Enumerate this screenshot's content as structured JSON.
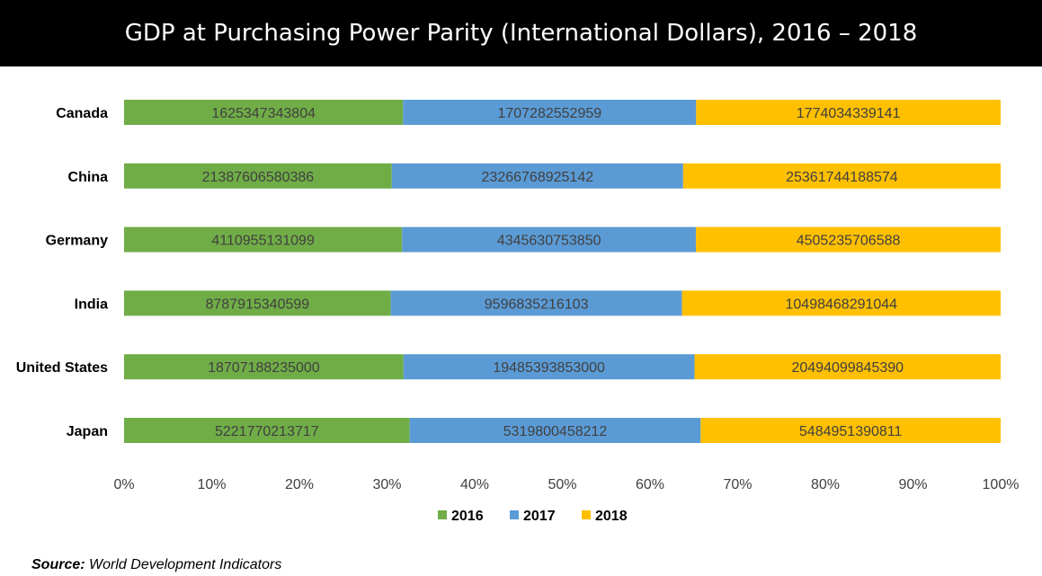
{
  "title": "GDP at Purchasing Power Parity (International Dollars), 2016 – 2018",
  "source": {
    "label": "Source:",
    "text": "World Development Indicators"
  },
  "chart_data": {
    "type": "bar",
    "orientation": "horizontal",
    "stacking": "percent",
    "categories": [
      "Canada",
      "China",
      "Germany",
      "India",
      "United States",
      "Japan"
    ],
    "series": [
      {
        "name": "2016",
        "color": "#70ad47",
        "values": [
          1625347343804,
          21387606580386,
          4110955131099,
          8787915340599,
          18707188235000,
          5221770213717
        ]
      },
      {
        "name": "2017",
        "color": "#5b9bd5",
        "values": [
          1707282552959,
          23266768925142,
          4345630753850,
          9596835216103,
          19485393853000,
          5319800458212
        ]
      },
      {
        "name": "2018",
        "color": "#ffc000",
        "values": [
          1774034339141,
          25361744188574,
          4505235706588,
          10498468291044,
          20494099845390,
          5484951390811
        ]
      }
    ],
    "xticks": [
      "0%",
      "10%",
      "20%",
      "30%",
      "40%",
      "50%",
      "60%",
      "70%",
      "80%",
      "90%",
      "100%"
    ],
    "xlim": [
      0,
      100
    ],
    "grid": false,
    "legend_position": "bottom"
  }
}
